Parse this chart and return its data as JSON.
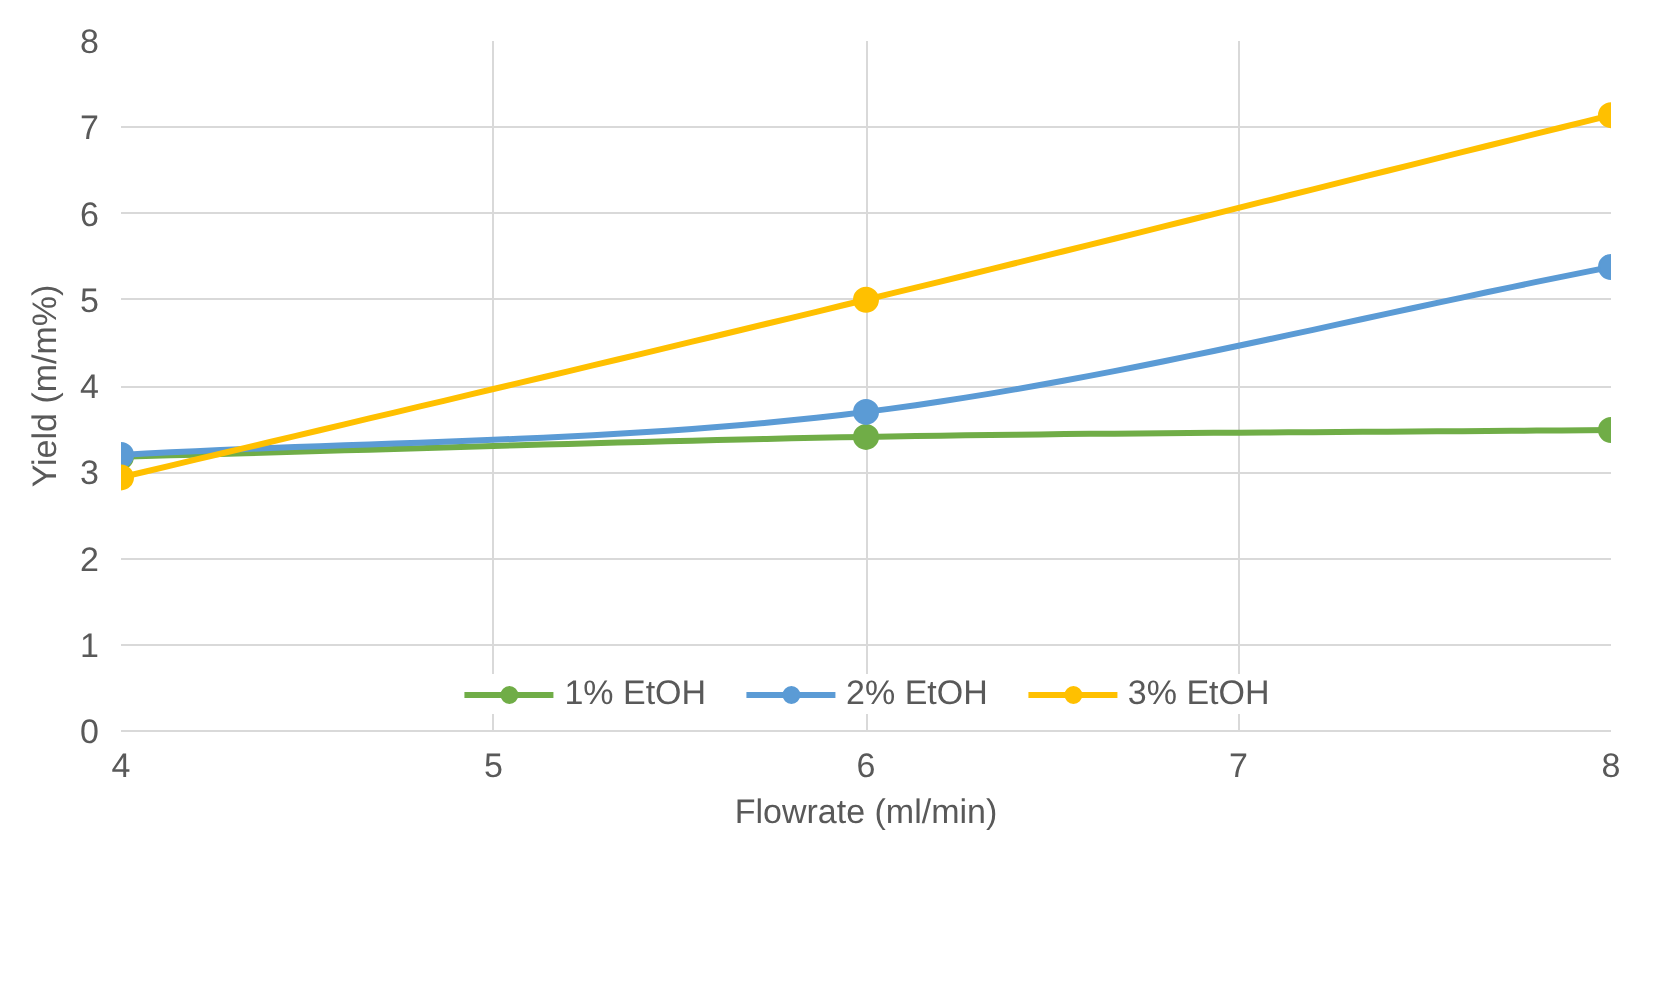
{
  "chart_data": {
    "type": "line",
    "xlabel": "Flowrate (ml/min)",
    "ylabel": "Yield (m/m%)",
    "x": [
      4,
      6,
      8
    ],
    "series": [
      {
        "name": "1% EtOH",
        "color": "#70ad47",
        "values": [
          3.18,
          3.41,
          3.49
        ]
      },
      {
        "name": "2% EtOH",
        "color": "#5b9bd5",
        "values": [
          3.2,
          3.7,
          5.38
        ]
      },
      {
        "name": "3% EtOH",
        "color": "#ffc000",
        "values": [
          2.94,
          5.0,
          7.14
        ]
      }
    ],
    "xlim": [
      4,
      8
    ],
    "xticks": [
      4,
      5,
      6,
      7,
      8
    ],
    "ylim": [
      0,
      8
    ],
    "yticks": [
      0,
      1,
      2,
      3,
      4,
      5,
      6,
      7,
      8
    ],
    "grid": true,
    "legend": "bottom",
    "marker": "circle",
    "line_style": "solid"
  }
}
